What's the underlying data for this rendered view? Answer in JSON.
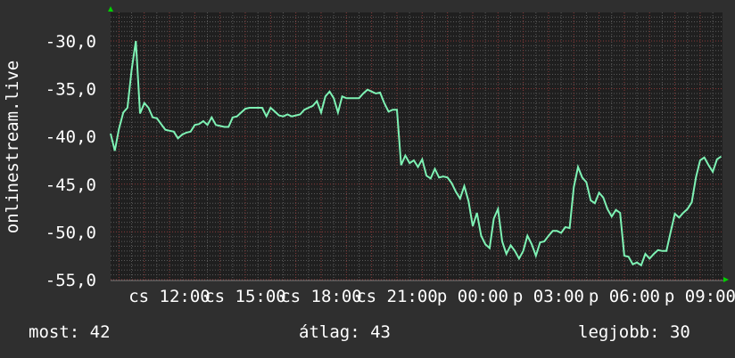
{
  "chart_data": {
    "type": "line",
    "title": "",
    "ylabel": "onlinestream.live",
    "xlabel": "",
    "ylim": [
      -55,
      -30
    ],
    "y_ticks": [
      "-30,0",
      "-35,0",
      "-40,0",
      "-45,0",
      "-50,0",
      "-55,0"
    ],
    "y_tick_values": [
      -30,
      -35,
      -40,
      -45,
      -50,
      -55
    ],
    "x_ticks": [
      "cs 12:00",
      "cs 15:00",
      "cs 18:00",
      "cs 21:00",
      "p 00:00",
      "p 03:00",
      "p 06:00",
      "p 09:00"
    ],
    "x_range": [
      "cs 09:40",
      "p 10:00"
    ],
    "grid": true,
    "colors": {
      "line": "#7ef2b4",
      "background": "#2f2f2f",
      "plot_background": "#1f1f1f",
      "major_grid": "#8a3a3a",
      "minor_grid": "#5a5a5a",
      "arrow": "#00d000"
    },
    "series": [
      {
        "values": [
          -39.7,
          -41.5,
          -39.2,
          -37.5,
          -37,
          -33,
          -30,
          -37.6,
          -36.5,
          -37,
          -38,
          -38.1,
          -38.7,
          -39.3,
          -39.4,
          -39.5,
          -40.2,
          -39.8,
          -39.6,
          -39.5,
          -38.8,
          -38.7,
          -38.4,
          -38.8,
          -38,
          -38.8,
          -38.9,
          -39,
          -39,
          -38,
          -37.9,
          -37.5,
          -37.1,
          -37,
          -37,
          -37,
          -37,
          -37.9,
          -37,
          -37.4,
          -37.8,
          -37.9,
          -37.7,
          -37.9,
          -37.8,
          -37.7,
          -37.2,
          -37,
          -36.8,
          -36.3,
          -37.5,
          -35.8,
          -35.3,
          -36,
          -37.5,
          -35.8,
          -36,
          -36,
          -36,
          -36,
          -35.5,
          -35.1,
          -35.3,
          -35.5,
          -35.4,
          -36.5,
          -37.4,
          -37.2,
          -37.2,
          -43,
          -42,
          -42.8,
          -42.5,
          -43.2,
          -42.4,
          -44.1,
          -44.4,
          -43.4,
          -44.3,
          -44.2,
          -44.3,
          -44.9,
          -45.8,
          -46.5,
          -45.2,
          -46.8,
          -49.4,
          -48,
          -50.4,
          -51.3,
          -51.7,
          -48.6,
          -47.6,
          -51,
          -52.3,
          -51.4,
          -52,
          -52.8,
          -52,
          -50.4,
          -51.3,
          -52.5,
          -51.1,
          -51,
          -50.4,
          -49.9,
          -49.9,
          -50.1,
          -49.5,
          -49.6,
          -45.3,
          -43.2,
          -44.3,
          -44.8,
          -46.7,
          -47,
          -45.9,
          -46.4,
          -47.6,
          -48.4,
          -47.7,
          -48,
          -52.5,
          -52.6,
          -53.4,
          -53.2,
          -53.5,
          -52.3,
          -52.8,
          -52.3,
          -51.9,
          -52,
          -52,
          -50,
          -48.1,
          -48.5,
          -48,
          -47.6,
          -46.9,
          -44.3,
          -42.5,
          -42.2,
          -43,
          -43.7,
          -42.4,
          -42.1
        ]
      }
    ]
  },
  "legend": {
    "current": "most: 42",
    "average": "átlag: 43",
    "maximum": "legjobb: 30"
  }
}
